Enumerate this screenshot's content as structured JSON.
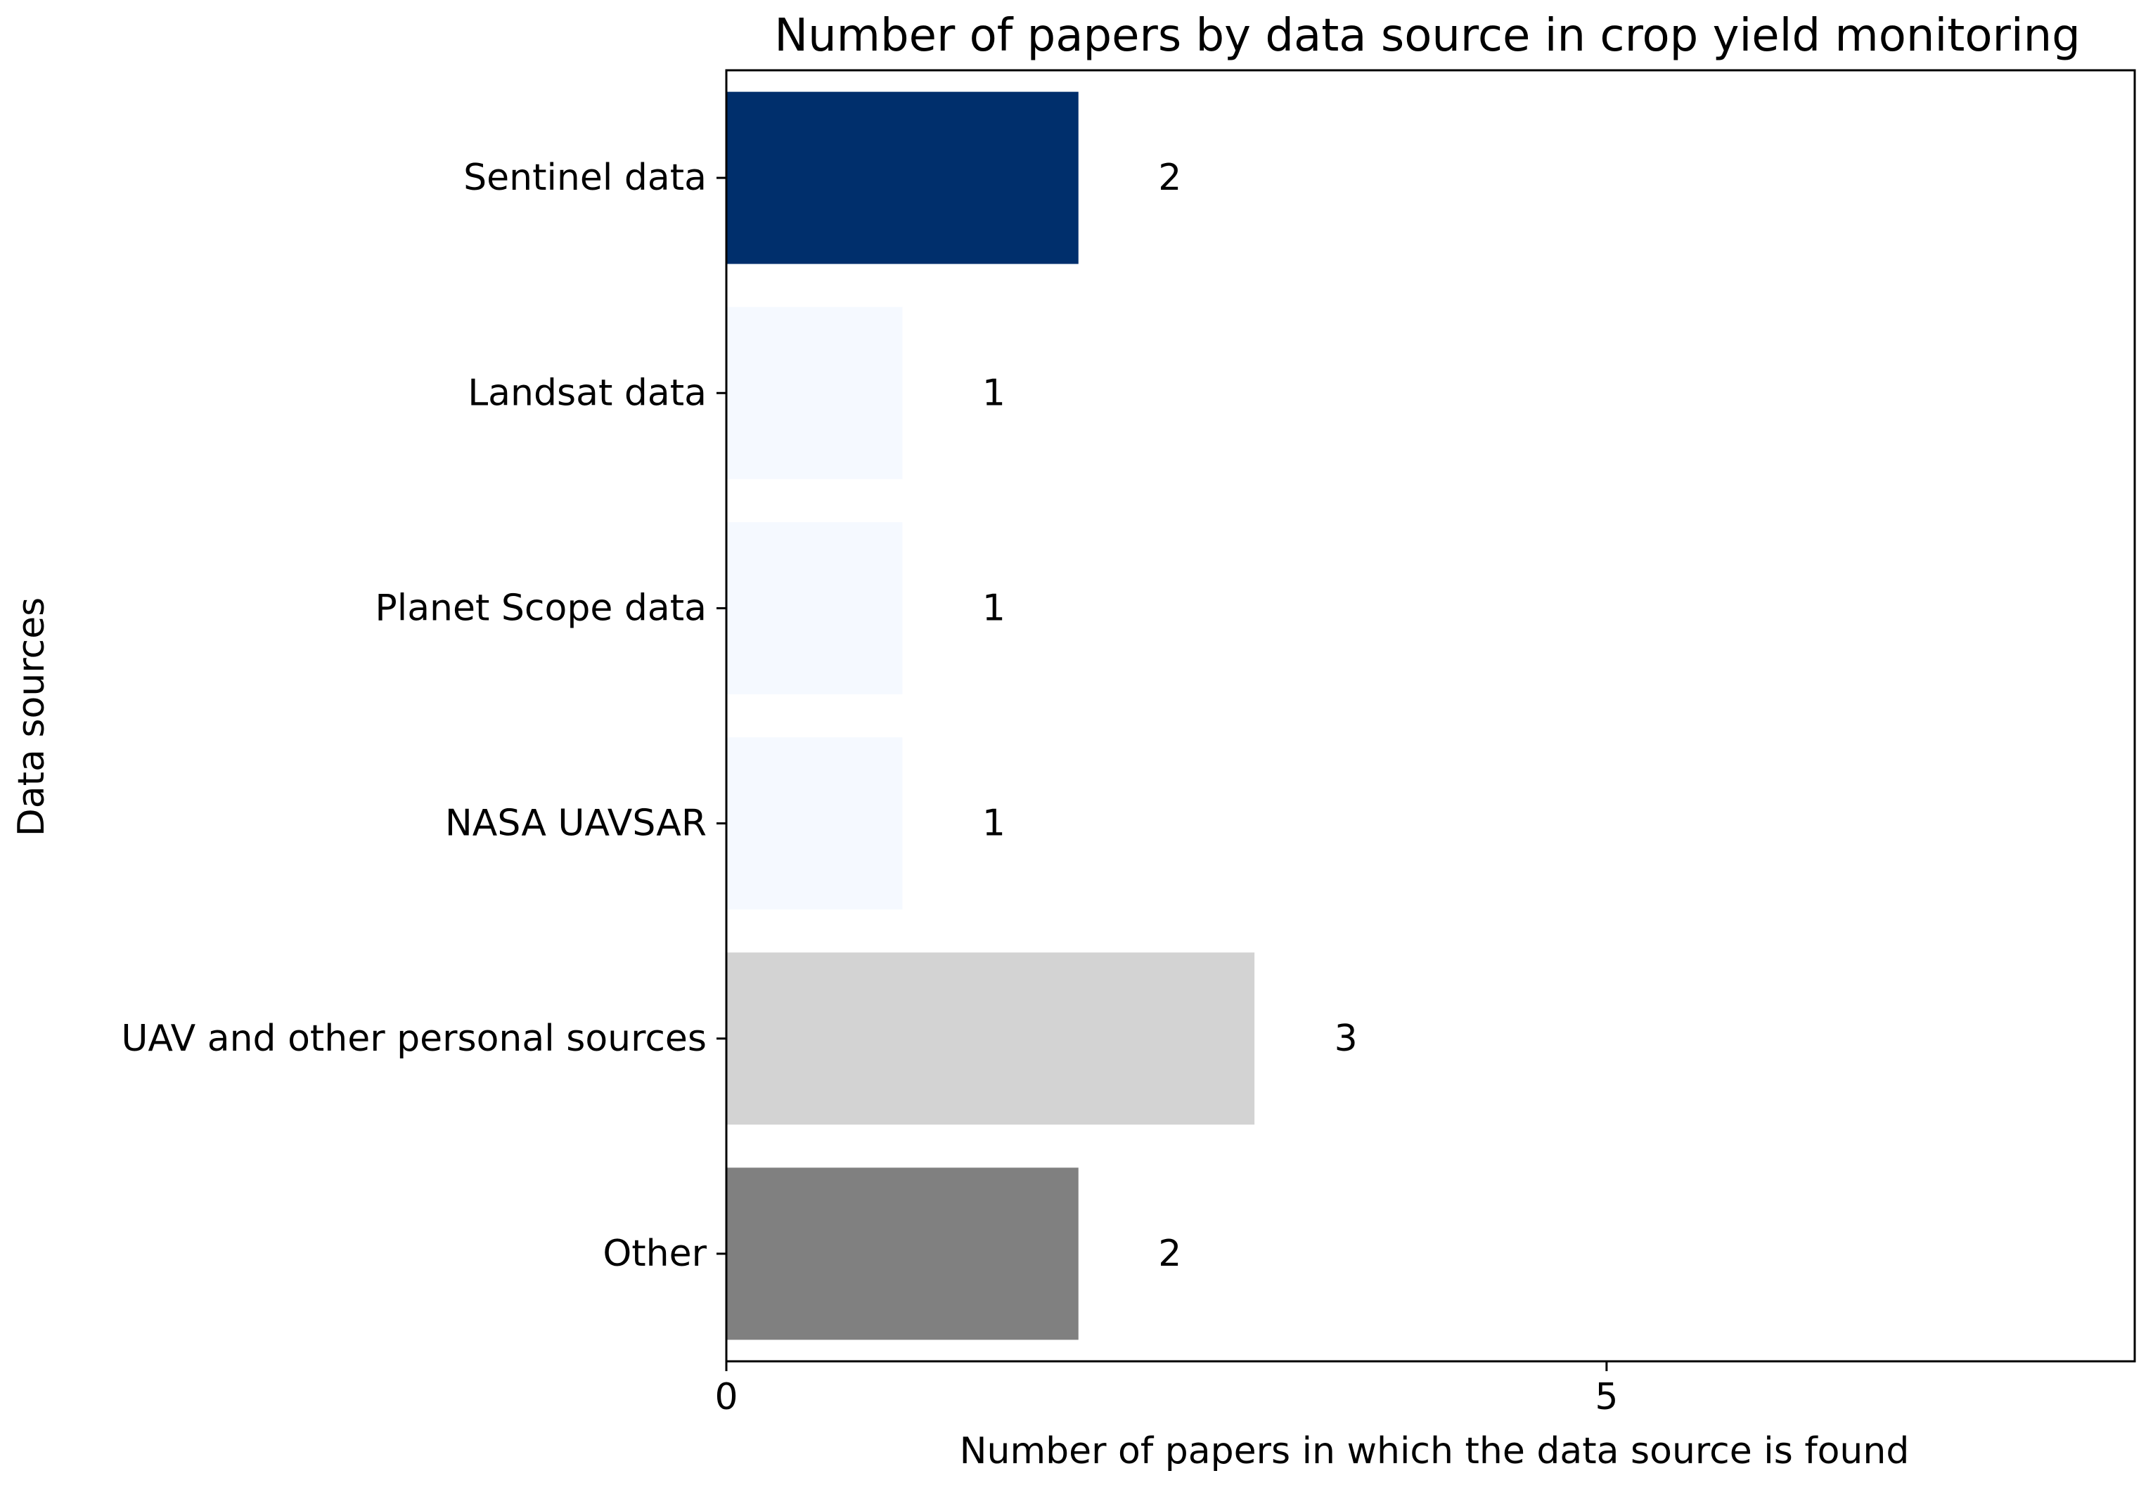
{
  "chart_data": {
    "type": "bar",
    "orientation": "horizontal",
    "title": "Number of papers by data source in crop yield monitoring",
    "xlabel": "Number of papers in which the data source is found",
    "ylabel": "Data sources",
    "xlim": [
      0,
      8
    ],
    "xticks": [
      0,
      5
    ],
    "grid": false,
    "categories": [
      "Sentinel data",
      "Landsat data",
      "Planet Scope data",
      "NASA UAVSAR",
      "UAV and other personal sources",
      "Other"
    ],
    "values": [
      2,
      1,
      1,
      1,
      3,
      2
    ],
    "colors": [
      "#002f6c",
      "#f5f9ff",
      "#f5f9ff",
      "#f5f9ff",
      "#d3d3d3",
      "#808080"
    ],
    "data_labels": [
      "2",
      "1",
      "1",
      "1",
      "3",
      "2"
    ]
  }
}
